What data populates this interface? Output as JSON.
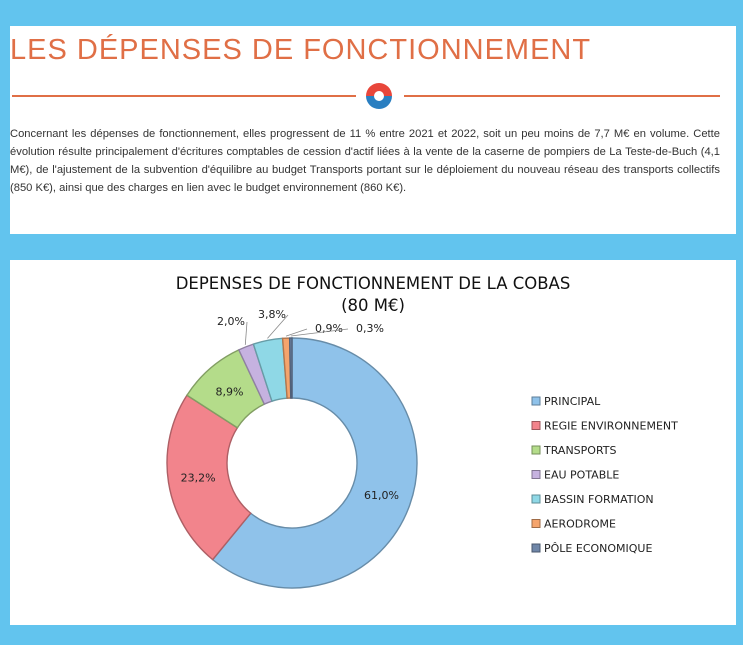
{
  "header": {
    "title": "LES DÉPENSES DE FONCTIONNEMENT",
    "paragraph": "Concernant les dépenses de fonctionnement, elles progressent de 11 % entre 2021 et 2022, soit un peu moins de 7,7 M€ en volume. Cette évolution résulte principalement d'écritures comptables de cession d'actif liées à la vente de la caserne de pompiers de La Teste-de-Buch (4,1 M€), de l'ajustement de la subvention d'équilibre au budget Transports portant sur le déploiement du nouveau réseau des transports collectifs (850 K€), ainsi que des charges en lien avec le budget environnement (860 K€)."
  },
  "colors": {
    "page_background": "#62c4ee",
    "accent": "#e06f46",
    "logo_red": "#e8463a",
    "logo_blue": "#2a7fc1"
  },
  "chart_data": {
    "type": "pie",
    "style": "donut",
    "title": "DEPENSES DE FONCTIONNEMENT DE LA COBAS",
    "subtitle": "(80 M€)",
    "legend_position": "right",
    "categories": [
      "PRINCIPAL",
      "REGIE ENVIRONNEMENT",
      "TRANSPORTS",
      "EAU POTABLE",
      "BASSIN FORMATION",
      "AERODROME",
      "PÔLE ECONOMIQUE"
    ],
    "values": [
      61.0,
      23.2,
      8.9,
      2.0,
      3.8,
      0.9,
      0.3
    ],
    "labels": [
      "61,0%",
      "23,2%",
      "8,9%",
      "2,0%",
      "3,8%",
      "0,9%",
      "0,3%"
    ],
    "colors": [
      "#8fc2ea",
      "#f2848c",
      "#b4dc8a",
      "#c6b2e0",
      "#8fd8e6",
      "#f5a46c",
      "#6f86a8"
    ]
  }
}
